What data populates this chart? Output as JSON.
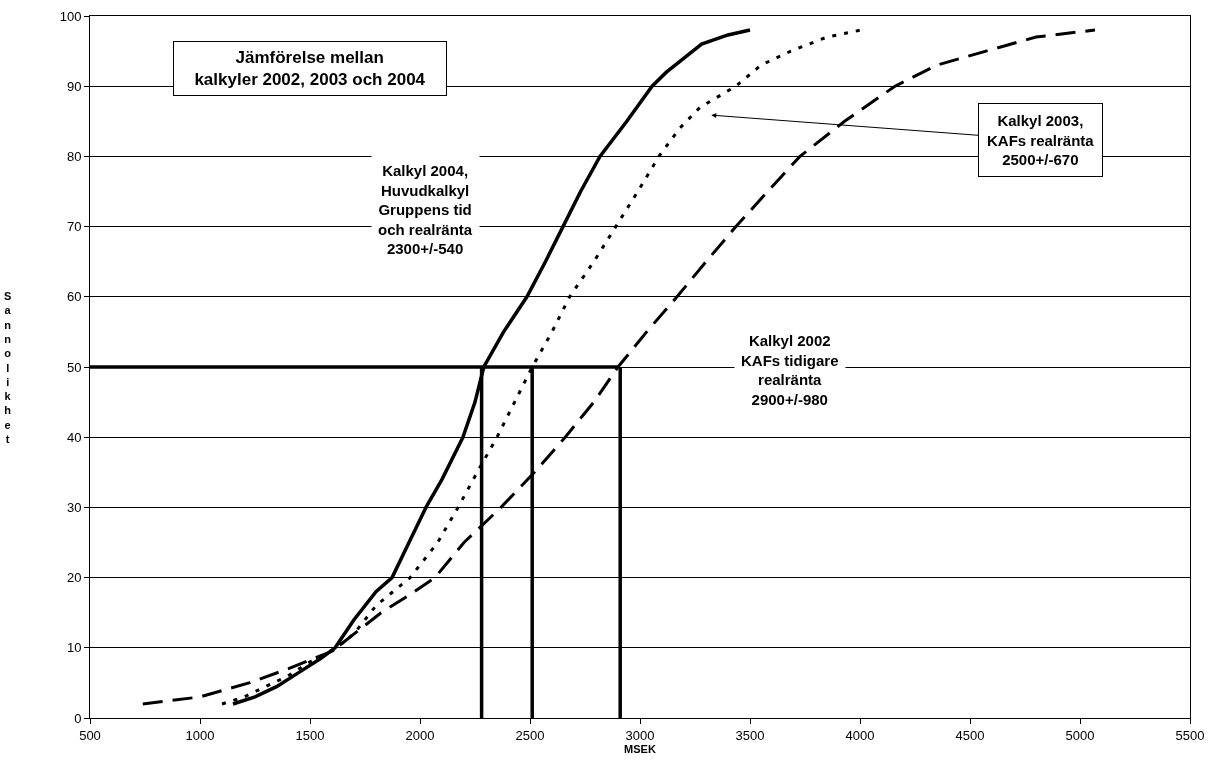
{
  "chart_data": {
    "type": "line",
    "title": "Jämförelse mellan\nkalkyler 2002, 2003 och 2004",
    "xlabel": "MSEK",
    "ylabel": "Sannolikhet",
    "xlim": [
      500,
      5500
    ],
    "xticks": [
      500,
      1000,
      1500,
      2000,
      2500,
      3000,
      3500,
      4000,
      4500,
      5000,
      5500
    ],
    "ylim": [
      0,
      100
    ],
    "yticks": [
      0,
      10,
      20,
      30,
      40,
      50,
      60,
      70,
      80,
      90,
      100
    ],
    "grid": "y",
    "marker": "none",
    "series": [
      {
        "color": "#000000",
        "line_style": "solid",
        "x": [
          1150,
          1250,
          1350,
          1450,
          1550,
          1614,
          1700,
          1800,
          1873,
          1950,
          2027,
          2100,
          2195,
          2250,
          2290,
          2380,
          2486,
          2570,
          2650,
          2730,
          2818,
          2940,
          3055,
          3120,
          3200,
          3280,
          3400,
          3500
        ],
        "values": [
          2,
          3,
          4.5,
          6.5,
          8.5,
          10,
          14,
          18,
          20,
          25,
          30,
          34,
          40,
          45,
          50,
          55,
          60,
          65,
          70,
          75,
          80,
          85,
          90,
          92,
          94,
          96,
          97.3,
          98
        ]
      },
      {
        "color": "#000000",
        "line_style": "dotted",
        "x": [
          1100,
          1200,
          1300,
          1400,
          1500,
          1620,
          1700,
          1800,
          1955,
          2080,
          2173,
          2260,
          2350,
          2430,
          2510,
          2600,
          2680,
          2790,
          2890,
          2990,
          3086,
          3180,
          3273,
          3436,
          3550,
          3686,
          3850,
          4005
        ],
        "values": [
          2,
          3,
          4.5,
          6,
          8,
          10,
          12,
          16,
          20,
          25,
          30,
          35,
          40,
          45,
          50,
          55,
          60,
          65,
          70,
          75,
          80,
          84,
          87,
          90,
          93,
          95,
          97,
          98
        ]
      },
      {
        "color": "#000000",
        "line_style": "dashed",
        "x": [
          740,
          1000,
          1223,
          1400,
          1600,
          1823,
          1950,
          2068,
          2200,
          2368,
          2520,
          2660,
          2790,
          2900,
          3030,
          3168,
          3300,
          3436,
          3580,
          3727,
          3930,
          4159,
          4350,
          4573,
          4800,
          5068
        ],
        "values": [
          2,
          3,
          5,
          7,
          9.5,
          15,
          17.5,
          20,
          25,
          30,
          35,
          40,
          45,
          50,
          55,
          60,
          65,
          70,
          75,
          80,
          85,
          90,
          93,
          95,
          97,
          98
        ]
      },
      {
        "color": "#000000",
        "line_style": "solid",
        "x": [
          500,
          2900
        ],
        "values": [
          50,
          50
        ]
      },
      {
        "color": "#000000",
        "line_style": "solid",
        "x": [
          2280,
          2280
        ],
        "values": [
          0,
          50
        ]
      },
      {
        "color": "#000000",
        "line_style": "solid",
        "x": [
          2510,
          2510
        ],
        "values": [
          0,
          50
        ]
      },
      {
        "color": "#000000",
        "line_style": "solid",
        "x": [
          2910,
          2910
        ],
        "values": [
          0,
          50
        ]
      }
    ],
    "annotations": [
      "Kalkyl 2004,\nHuvudkalkyl\nGruppens tid\noch realränta\n2300+/-540",
      "Kalkyl 2003,\nKAFs realränta\n2500+/-670",
      "Kalkyl 2002\nKAFs tidigare\nrealränta\n2900+/-980"
    ]
  }
}
